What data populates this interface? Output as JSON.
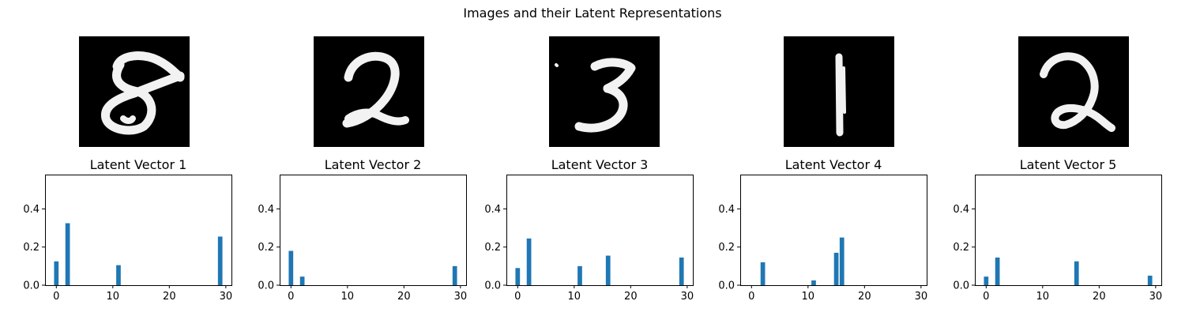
{
  "figure": {
    "title": "Images and their Latent Representations"
  },
  "chart_data": [
    {
      "type": "bar",
      "title": "Latent Vector 1",
      "image_label": "digit-8",
      "x": [
        0,
        2,
        11,
        29
      ],
      "values": [
        0.125,
        0.325,
        0.105,
        0.255
      ],
      "xlim": [
        -2,
        31
      ],
      "ylim": [
        0,
        0.58
      ],
      "xticks": [
        0,
        10,
        20,
        30
      ],
      "yticks": [
        0.0,
        0.2,
        0.4
      ],
      "color": "#1f77b4"
    },
    {
      "type": "bar",
      "title": "Latent Vector 2",
      "image_label": "digit-2",
      "x": [
        0,
        2,
        29
      ],
      "values": [
        0.18,
        0.045,
        0.1
      ],
      "xlim": [
        -2,
        31
      ],
      "ylim": [
        0,
        0.58
      ],
      "xticks": [
        0,
        10,
        20,
        30
      ],
      "yticks": [
        0.0,
        0.2,
        0.4
      ],
      "color": "#1f77b4"
    },
    {
      "type": "bar",
      "title": "Latent Vector 3",
      "image_label": "digit-3",
      "x": [
        0,
        2,
        11,
        16,
        29
      ],
      "values": [
        0.09,
        0.245,
        0.1,
        0.155,
        0.145
      ],
      "xlim": [
        -2,
        31
      ],
      "ylim": [
        0,
        0.58
      ],
      "xticks": [
        0,
        10,
        20,
        30
      ],
      "yticks": [
        0.0,
        0.2,
        0.4
      ],
      "color": "#1f77b4"
    },
    {
      "type": "bar",
      "title": "Latent Vector 4",
      "image_label": "digit-1",
      "x": [
        2,
        11,
        15,
        16
      ],
      "values": [
        0.12,
        0.025,
        0.17,
        0.25
      ],
      "xlim": [
        -2,
        31
      ],
      "ylim": [
        0,
        0.58
      ],
      "xticks": [
        0,
        10,
        20,
        30
      ],
      "yticks": [
        0.0,
        0.2,
        0.4
      ],
      "color": "#1f77b4"
    },
    {
      "type": "bar",
      "title": "Latent Vector 5",
      "image_label": "digit-2",
      "x": [
        0,
        2,
        16,
        29
      ],
      "values": [
        0.045,
        0.145,
        0.125,
        0.05
      ],
      "xlim": [
        -2,
        31
      ],
      "ylim": [
        0,
        0.58
      ],
      "xticks": [
        0,
        10,
        20,
        30
      ],
      "yticks": [
        0.0,
        0.2,
        0.4
      ],
      "color": "#1f77b4"
    }
  ]
}
